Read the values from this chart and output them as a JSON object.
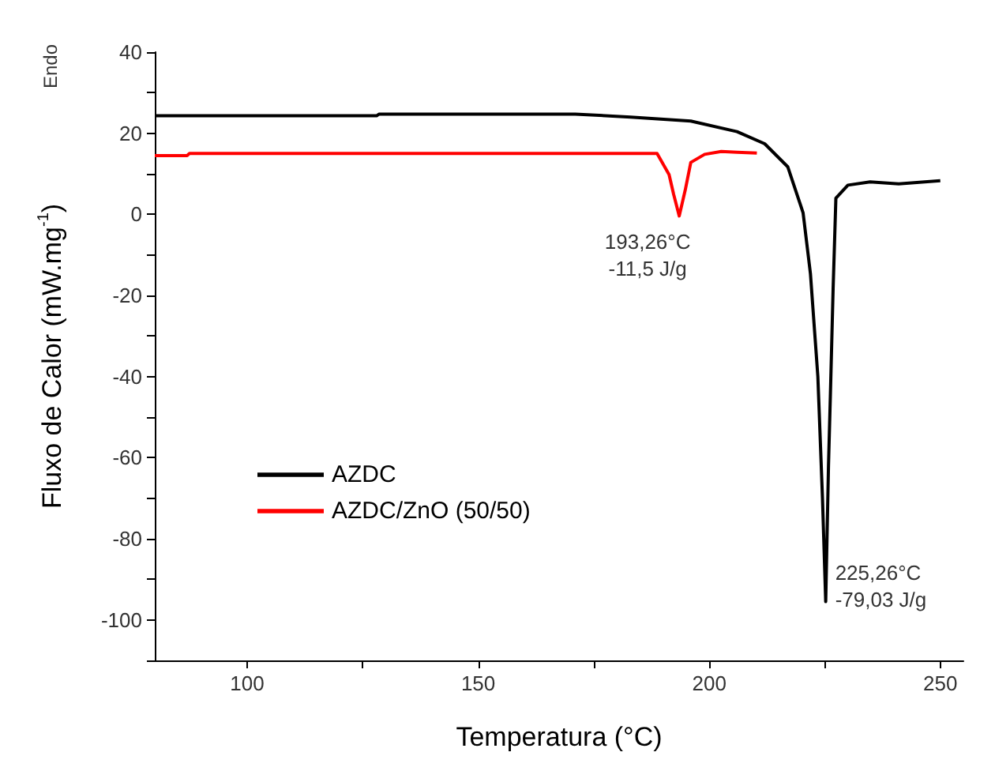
{
  "chart_data": {
    "type": "line",
    "xlabel": "Temperatura (°C)",
    "ylabel": "Fluxo de Calor (mW.mg$^{-1}$)",
    "xlim": [
      80,
      255
    ],
    "xticks": [
      100,
      {
        "value": 125,
        "label": null
      },
      150,
      {
        "value": 175,
        "label": null
      },
      200,
      {
        "value": 225,
        "label": null
      },
      250
    ],
    "ylim": [
      -110,
      40
    ],
    "yticks": [
      {
        "value": -110,
        "label": null
      },
      -100,
      {
        "value": -90,
        "label": null
      },
      -80,
      {
        "value": -70,
        "label": null
      },
      -60,
      {
        "value": -50,
        "label": null
      },
      -40,
      {
        "value": -30,
        "label": null
      },
      -20,
      {
        "value": -10,
        "label": null
      },
      0,
      {
        "value": 10,
        "label": null
      },
      20,
      {
        "value": 30,
        "label": null
      },
      40
    ],
    "grid": false,
    "legend": "left",
    "marker": "none",
    "line_style": "solid",
    "series": [
      {
        "name": "AZDC",
        "color": "#000000",
        "x": [
          80,
          128,
          128.5,
          171,
          183,
          196,
          206,
          212,
          217,
          220.3,
          221.9,
          223.5,
          224.5,
          225.2,
          225.8,
          226.2,
          226.8,
          227.4,
          230,
          234.8,
          241,
          250
        ],
        "values": [
          24.3,
          24.3,
          24.7,
          24.7,
          24,
          23,
          20.4,
          17.4,
          11.7,
          0.4,
          -14.7,
          -40,
          -70,
          -95.5,
          -62,
          -45,
          -18.5,
          4,
          7.2,
          8,
          7.5,
          8.3
        ]
      },
      {
        "name": "AZDC/ZnO (50/50)",
        "color": "#ff0000",
        "x": [
          80,
          87,
          87.5,
          188.7,
          191.3,
          192.3,
          193.5,
          194.8,
          196,
          199,
          202.6,
          206,
          210.3
        ],
        "values": [
          14.5,
          14.5,
          15,
          15,
          9.8,
          4.9,
          -0.4,
          6,
          12.8,
          14.8,
          15.5,
          15.3,
          15.1
        ]
      }
    ],
    "annotations": [
      "Endo",
      {
        "text": "193,26°C\n-11,5 J/g",
        "x": 193.5,
        "y": -0.4
      },
      {
        "text": "225,26°C\n-79,03 J/g",
        "x": 225.2,
        "y": -95.5
      }
    ]
  }
}
